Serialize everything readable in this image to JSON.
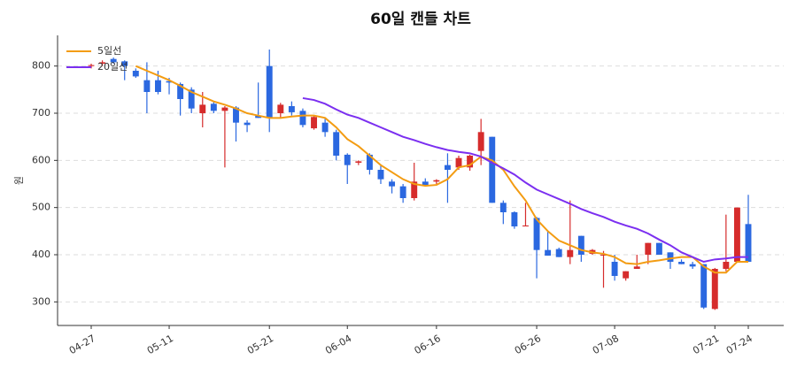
{
  "chart_data": {
    "type": "candlestick",
    "title": "60일 캔들 차트",
    "y_label": "원",
    "categories": [
      "04-27",
      null,
      null,
      null,
      null,
      null,
      null,
      "05-11",
      null,
      null,
      null,
      null,
      null,
      null,
      null,
      null,
      "05-21",
      null,
      null,
      null,
      null,
      null,
      null,
      "06-04",
      null,
      null,
      null,
      null,
      null,
      null,
      null,
      "06-16",
      null,
      null,
      null,
      null,
      null,
      null,
      null,
      null,
      "06-26",
      null,
      null,
      null,
      null,
      null,
      null,
      "07-08",
      null,
      null,
      null,
      null,
      null,
      null,
      null,
      null,
      "07-21",
      null,
      null,
      "07-24"
    ],
    "open": [
      800,
      805,
      815,
      810,
      790,
      770,
      770,
      768,
      762,
      750,
      700,
      720,
      705,
      712,
      680,
      695,
      800,
      700,
      715,
      705,
      668,
      680,
      660,
      612,
      595,
      612,
      580,
      555,
      545,
      520,
      555,
      555,
      590,
      585,
      585,
      620,
      650,
      510,
      490,
      460,
      478,
      410,
      412,
      395,
      440,
      402,
      400,
      385,
      350,
      370,
      400,
      425,
      405,
      385,
      380,
      380,
      285,
      370,
      385,
      465
    ],
    "high": [
      805,
      812,
      818,
      812,
      795,
      808,
      790,
      775,
      765,
      755,
      745,
      725,
      715,
      715,
      685,
      765,
      835,
      722,
      725,
      710,
      695,
      690,
      665,
      615,
      600,
      615,
      590,
      560,
      550,
      595,
      562,
      560,
      615,
      610,
      612,
      688,
      650,
      515,
      492,
      510,
      480,
      450,
      415,
      515,
      440,
      412,
      408,
      400,
      365,
      400,
      425,
      425,
      405,
      390,
      385,
      380,
      372,
      485,
      500,
      527
    ],
    "low": [
      795,
      800,
      805,
      770,
      775,
      700,
      740,
      740,
      695,
      700,
      670,
      700,
      585,
      640,
      660,
      690,
      660,
      690,
      695,
      670,
      665,
      650,
      600,
      550,
      590,
      570,
      550,
      530,
      510,
      515,
      545,
      550,
      510,
      580,
      578,
      590,
      510,
      465,
      455,
      460,
      350,
      398,
      395,
      380,
      385,
      400,
      330,
      345,
      345,
      370,
      380,
      400,
      370,
      380,
      370,
      285,
      283,
      365,
      385,
      385
    ],
    "close": [
      802,
      808,
      808,
      800,
      778,
      745,
      745,
      765,
      730,
      710,
      718,
      705,
      712,
      680,
      675,
      690,
      690,
      718,
      702,
      675,
      692,
      660,
      610,
      590,
      598,
      580,
      560,
      545,
      520,
      555,
      548,
      558,
      580,
      605,
      610,
      660,
      510,
      490,
      460,
      462,
      410,
      398,
      395,
      410,
      400,
      410,
      400,
      355,
      365,
      375,
      425,
      400,
      385,
      380,
      375,
      288,
      370,
      385,
      500,
      385
    ],
    "up_color": "#d62c2c",
    "down_color": "#2b68e0",
    "series": [
      {
        "name": "5일선",
        "color": "#f39c12",
        "values": [
          null,
          null,
          null,
          null,
          800,
          790,
          780,
          770,
          758,
          745,
          735,
          725,
          718,
          710,
          700,
          695,
          690,
          690,
          693,
          695,
          695,
          690,
          670,
          645,
          630,
          610,
          590,
          575,
          560,
          550,
          546,
          548,
          560,
          585,
          590,
          608,
          600,
          580,
          545,
          515,
          475,
          450,
          430,
          420,
          410,
          405,
          402,
          395,
          382,
          380,
          385,
          388,
          392,
          395,
          395,
          375,
          362,
          362,
          385,
          385
        ]
      },
      {
        "name": "20일선",
        "color": "#7b2ff0",
        "values": [
          null,
          null,
          null,
          null,
          null,
          null,
          null,
          null,
          null,
          null,
          null,
          null,
          null,
          null,
          null,
          null,
          null,
          null,
          null,
          732,
          728,
          720,
          708,
          697,
          690,
          680,
          670,
          660,
          650,
          643,
          635,
          628,
          622,
          618,
          615,
          608,
          595,
          583,
          570,
          553,
          538,
          528,
          518,
          508,
          497,
          488,
          480,
          470,
          462,
          455,
          445,
          432,
          420,
          405,
          395,
          385,
          390,
          392,
          395,
          395
        ]
      }
    ],
    "ylim": [
      250,
      865
    ],
    "yticks": [
      300,
      400,
      500,
      600,
      700,
      800
    ],
    "grid": true,
    "legend": "upper left"
  }
}
